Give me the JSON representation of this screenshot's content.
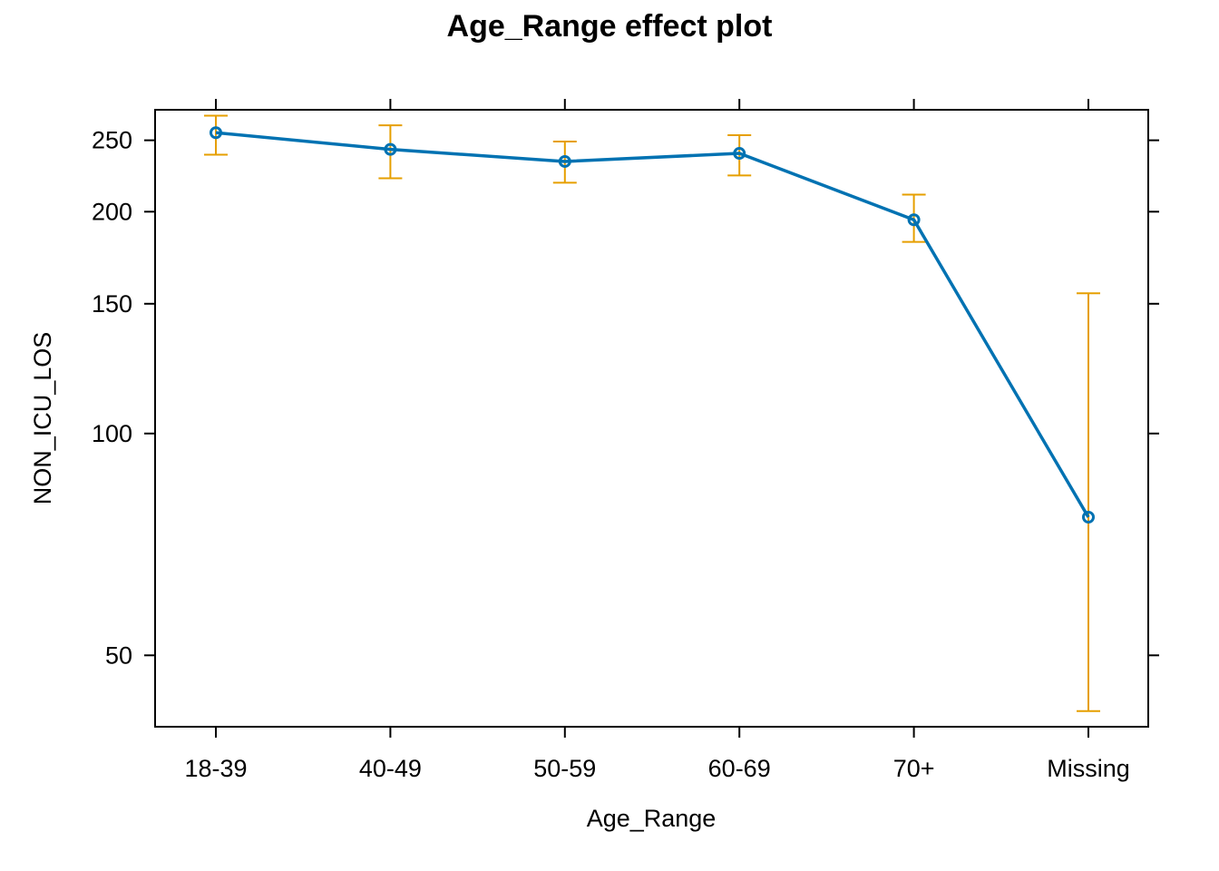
{
  "chart_data": {
    "type": "line",
    "title": "Age_Range effect plot",
    "xlabel": "Age_Range",
    "ylabel": "NON_ICU_LOS",
    "y_scale": "log",
    "ylim": [
      40,
      275
    ],
    "y_ticks": [
      50,
      100,
      150,
      200,
      250
    ],
    "categories": [
      "18-39",
      "40-49",
      "50-59",
      "60-69",
      "70+",
      "Missing"
    ],
    "series": [
      {
        "values": [
          256,
          243,
          234,
          240,
          195,
          77
        ],
        "lower": [
          239,
          222,
          219,
          224,
          182,
          42
        ],
        "upper": [
          270,
          262,
          249,
          254,
          211,
          155
        ],
        "color": "#0072B2"
      }
    ],
    "errorbar_color": "#E69F00",
    "grid": false,
    "legend": "none"
  }
}
